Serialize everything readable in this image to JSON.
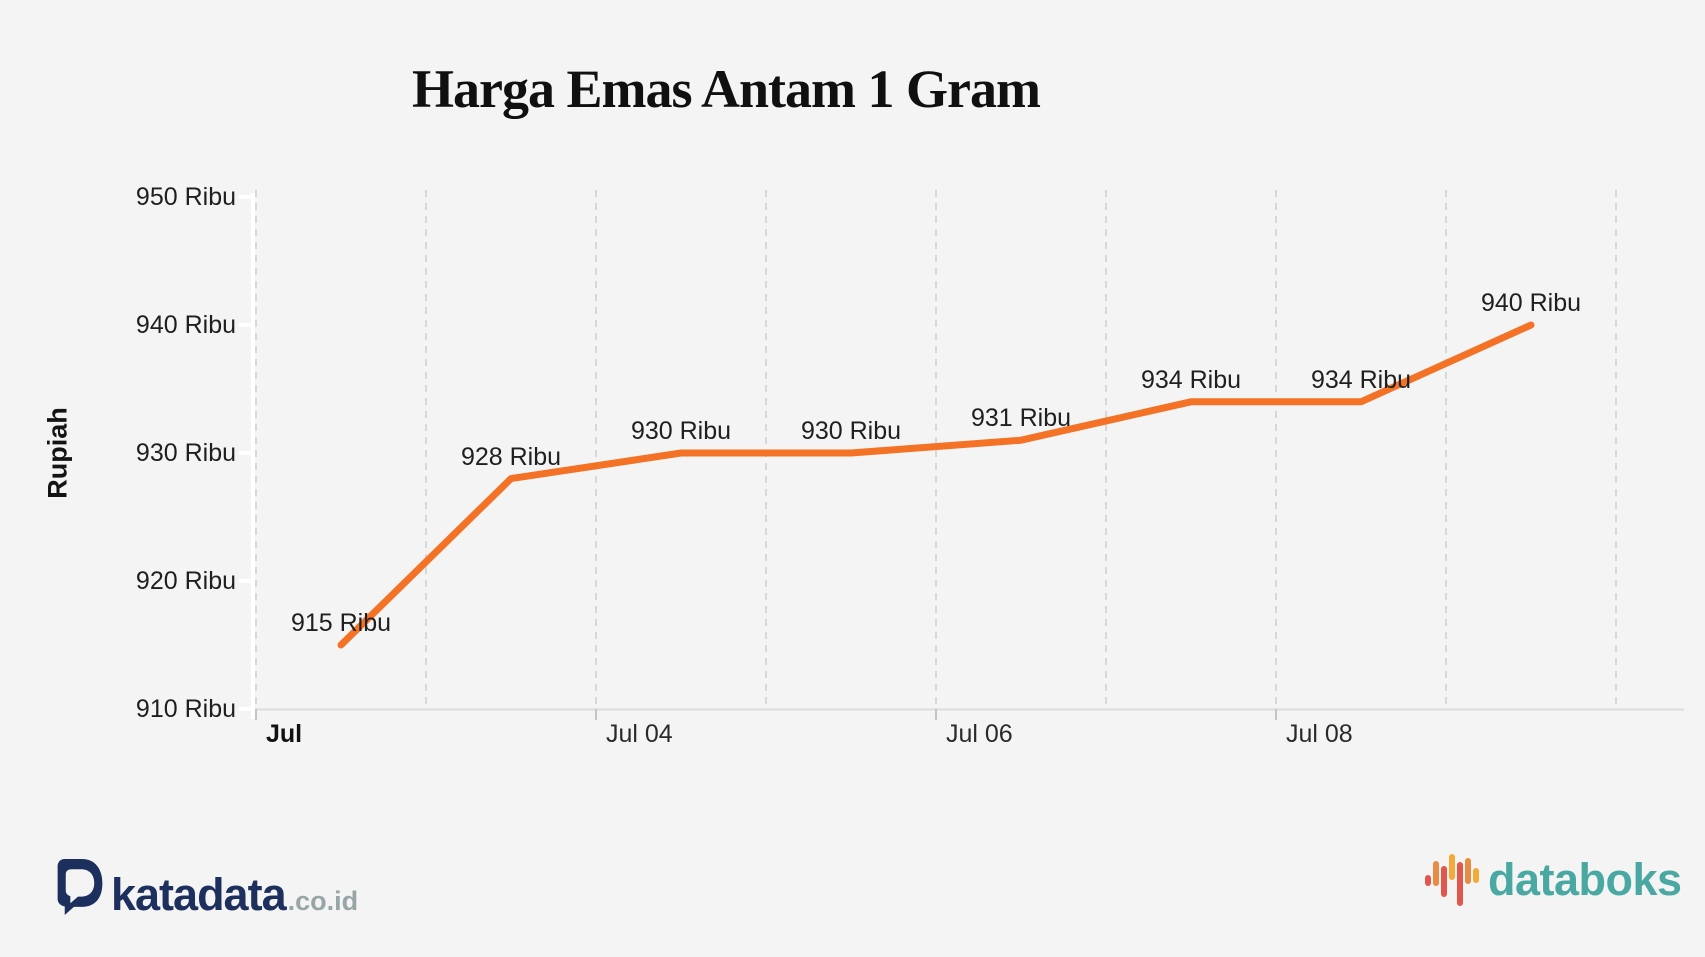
{
  "title": "Harga Emas Antam 1 Gram",
  "chart_data": {
    "type": "line",
    "title": "Harga Emas Antam 1 Gram",
    "ylabel": "Rupiah",
    "xlabel": "",
    "unit": "Ribu",
    "values": [
      915,
      928,
      930,
      930,
      931,
      934,
      934,
      940
    ],
    "point_labels": [
      "915 Ribu",
      "928 Ribu",
      "930 Ribu",
      "930 Ribu",
      "931 Ribu",
      "934 Ribu",
      "934 Ribu",
      "940 Ribu"
    ],
    "x_tick_labels": [
      "Jul",
      "Jul 04",
      "Jul 06",
      "Jul 08"
    ],
    "y_tick_labels": [
      "950 Ribu",
      "940 Ribu",
      "930 Ribu",
      "920 Ribu",
      "910 Ribu"
    ],
    "y_tick_values": [
      950,
      940,
      930,
      920,
      910
    ],
    "ylim": [
      910,
      950
    ],
    "grid": "vertical-dashed",
    "legend": "none",
    "line_color": "#f47226"
  },
  "colors": {
    "background": "#f4f4f4",
    "line": "#f47226",
    "gridline": "#d8d8d8",
    "x_axis": "#dcdcdc",
    "x_tick": "#c4c4c4",
    "y_axis": "#ffffff",
    "text": "#1f1f1f",
    "katadata_navy": "#1c2f5d",
    "katadata_suffix_gray": "#97a5a7",
    "databoks_teal": "#4aa8a3",
    "icon_red": "#e2574c",
    "icon_orange": "#e88c43",
    "icon_yellow": "#f3ab37"
  },
  "footer": {
    "katadata_word": "katadata",
    "katadata_suffix": ".co.id",
    "databoks_word": "databoks"
  }
}
